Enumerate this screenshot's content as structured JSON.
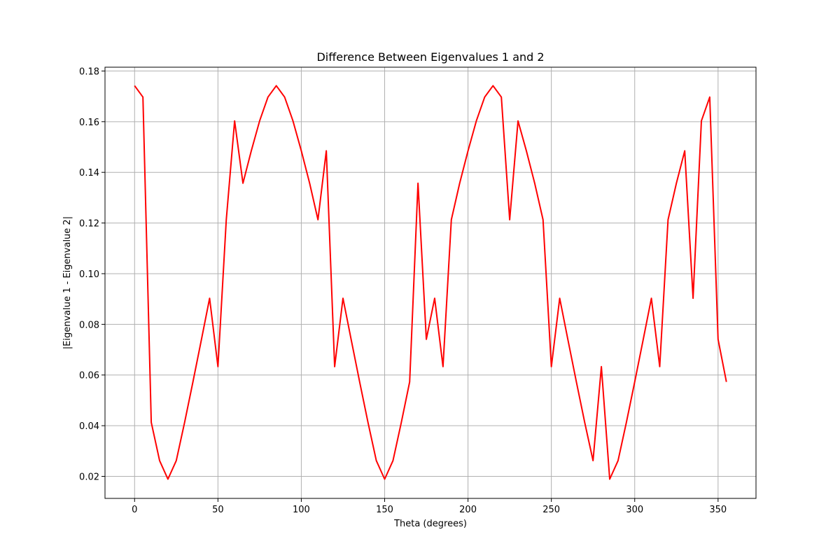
{
  "chart_data": {
    "type": "line",
    "title": "Difference Between Eigenvalues 1 and 2",
    "xlabel": "Theta (degrees)",
    "ylabel": "|Eigenvalue 1 - Eigenvalue 2|",
    "xlim": [
      -17.75,
      372.75
    ],
    "ylim": [
      0.0113,
      0.1815
    ],
    "xticks": [
      0,
      50,
      100,
      150,
      200,
      250,
      300,
      350
    ],
    "xtick_labels": [
      "0",
      "50",
      "100",
      "150",
      "200",
      "250",
      "300",
      "350"
    ],
    "yticks": [
      0.02,
      0.04,
      0.06,
      0.08,
      0.1,
      0.12,
      0.14,
      0.16,
      0.18
    ],
    "ytick_labels": [
      "0.02",
      "0.04",
      "0.06",
      "0.08",
      "0.10",
      "0.12",
      "0.14",
      "0.16",
      "0.18"
    ],
    "grid": true,
    "series": [
      {
        "color": "#ff0000",
        "x": [
          0,
          5,
          10,
          15,
          20,
          25,
          30,
          35,
          40,
          45,
          50,
          55,
          60,
          65,
          70,
          75,
          80,
          85,
          90,
          95,
          100,
          105,
          110,
          115,
          120,
          125,
          130,
          135,
          140,
          145,
          150,
          155,
          160,
          165,
          170,
          175,
          180,
          185,
          190,
          195,
          200,
          205,
          210,
          215,
          220,
          225,
          230,
          235,
          240,
          245,
          250,
          255,
          260,
          265,
          270,
          275,
          280,
          285,
          290,
          295,
          300,
          305,
          310,
          315,
          320,
          325,
          330,
          335,
          340,
          345,
          350,
          355
        ],
        "y": [
          0.1742,
          0.1697,
          0.0413,
          0.0262,
          0.0189,
          0.0262,
          0.0413,
          0.0573,
          0.0737,
          0.0903,
          0.0633,
          0.1213,
          0.1603,
          0.1357,
          0.1485,
          0.1603,
          0.1697,
          0.1742,
          0.1697,
          0.1603,
          0.1485,
          0.1357,
          0.1213,
          0.1485,
          0.0633,
          0.0903,
          0.0737,
          0.0573,
          0.0413,
          0.0262,
          0.0189,
          0.0262,
          0.0413,
          0.0573,
          0.1357,
          0.0741,
          0.0903,
          0.0633,
          0.1213,
          0.1357,
          0.1485,
          0.1603,
          0.1697,
          0.1742,
          0.1697,
          0.1213,
          0.1603,
          0.1485,
          0.1357,
          0.1213,
          0.0633,
          0.0903,
          0.0737,
          0.0573,
          0.0413,
          0.0262,
          0.0633,
          0.0189,
          0.0262,
          0.0413,
          0.0573,
          0.0737,
          0.0903,
          0.0633,
          0.1213,
          0.1357,
          0.1485,
          0.0903,
          0.1603,
          0.1697,
          0.0741,
          0.0573
        ]
      }
    ]
  }
}
